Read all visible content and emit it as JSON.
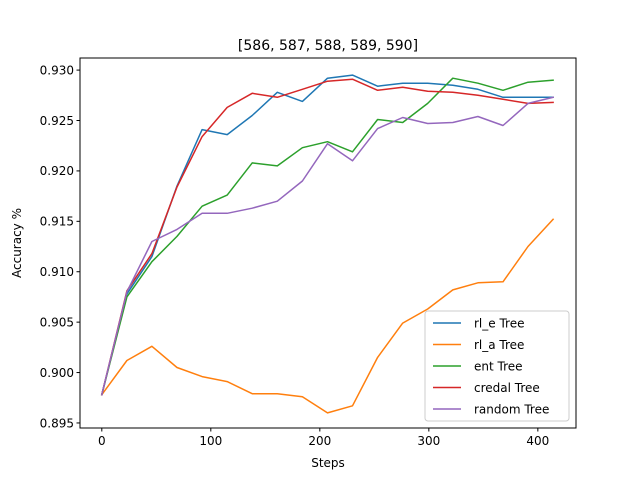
{
  "chart_data": {
    "type": "line",
    "title": "[586, 587, 588, 589, 590]",
    "xlabel": "Steps",
    "ylabel": "Accuracy %",
    "xlim": [
      -20,
      435
    ],
    "ylim": [
      0.8945,
      0.9312
    ],
    "xticks": [
      0,
      100,
      200,
      300,
      400
    ],
    "xtick_labels": [
      "0",
      "100",
      "200",
      "300",
      "400"
    ],
    "yticks": [
      0.895,
      0.9,
      0.905,
      0.91,
      0.915,
      0.92,
      0.925,
      0.93
    ],
    "ytick_labels": [
      "0.895",
      "0.900",
      "0.905",
      "0.910",
      "0.915",
      "0.920",
      "0.925",
      "0.930"
    ],
    "grid": false,
    "legend_position": "lower right",
    "x": [
      0,
      23,
      46,
      69,
      92,
      115,
      138,
      161,
      184,
      207,
      230,
      253,
      276,
      299,
      322,
      345,
      368,
      391,
      414
    ],
    "series": [
      {
        "name": "rl_e Tree",
        "color": "#1f77b4",
        "values": [
          0.8978,
          0.9078,
          0.9115,
          0.9185,
          0.9241,
          0.9236,
          0.9255,
          0.9278,
          0.9269,
          0.9292,
          0.9295,
          0.9284,
          0.9287,
          0.9287,
          0.9285,
          0.9281,
          0.9273,
          0.9273,
          0.9273
        ]
      },
      {
        "name": "rl_a Tree",
        "color": "#ff7f0e",
        "values": [
          0.8978,
          0.9012,
          0.9026,
          0.9005,
          0.8996,
          0.8991,
          0.8979,
          0.8979,
          0.8976,
          0.896,
          0.8967,
          0.9015,
          0.9049,
          0.9063,
          0.9082,
          0.9089,
          0.909,
          0.9125,
          0.9152
        ]
      },
      {
        "name": "ent Tree",
        "color": "#2ca02c",
        "values": [
          0.8978,
          0.9075,
          0.911,
          0.9135,
          0.9165,
          0.9176,
          0.9208,
          0.9205,
          0.9223,
          0.9229,
          0.9219,
          0.9251,
          0.9248,
          0.9267,
          0.9292,
          0.9287,
          0.928,
          0.9288,
          0.929
        ]
      },
      {
        "name": "credal Tree",
        "color": "#d62728",
        "values": [
          0.8978,
          0.9081,
          0.9118,
          0.9184,
          0.9234,
          0.9263,
          0.9277,
          0.9273,
          0.9281,
          0.9289,
          0.9291,
          0.928,
          0.9283,
          0.9279,
          0.9278,
          0.9275,
          0.9271,
          0.9267,
          0.9268
        ]
      },
      {
        "name": "random Tree",
        "color": "#9467bd",
        "values": [
          0.8978,
          0.908,
          0.913,
          0.9142,
          0.9158,
          0.9158,
          0.9163,
          0.917,
          0.919,
          0.9227,
          0.921,
          0.9242,
          0.9253,
          0.9247,
          0.9248,
          0.9254,
          0.9245,
          0.9267,
          0.9273
        ]
      }
    ]
  }
}
